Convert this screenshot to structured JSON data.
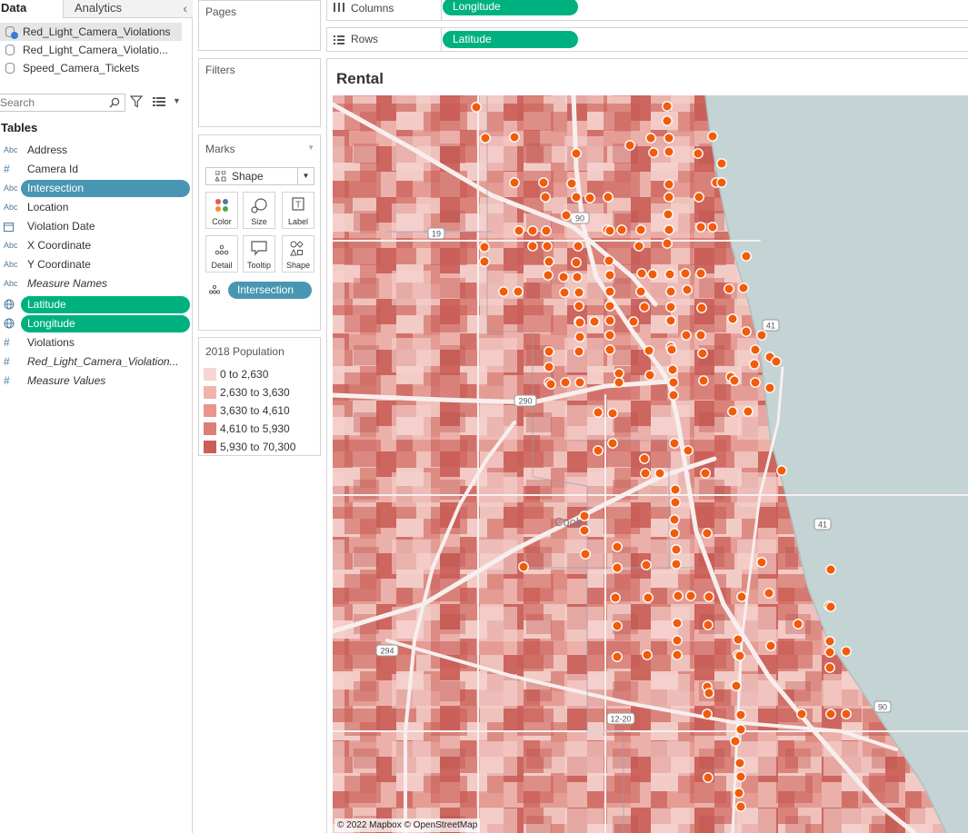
{
  "data_pane": {
    "tabs": [
      "Data",
      "Analytics"
    ],
    "datasources": [
      "Red_Light_Camera_Violations",
      "Red_Light_Camera_Violatio...",
      "Speed_Camera_Tickets"
    ],
    "search_placeholder": "Search",
    "tables_heading": "Tables",
    "fields": [
      {
        "type": "Abc",
        "label": "Address"
      },
      {
        "type": "#",
        "label": "Camera Id"
      },
      {
        "type": "Abc",
        "label": "Intersection"
      },
      {
        "type": "Abc",
        "label": "Location"
      },
      {
        "type": "date",
        "label": "Violation Date"
      },
      {
        "type": "Abc",
        "label": "X Coordinate"
      },
      {
        "type": "Abc",
        "label": "Y Coordinate"
      },
      {
        "type": "Abc",
        "label": "Measure Names"
      },
      {
        "type": "geo",
        "label": "Latitude"
      },
      {
        "type": "geo",
        "label": "Longitude"
      },
      {
        "type": "#",
        "label": "Violations"
      },
      {
        "type": "#",
        "label": "Red_Light_Camera_Violation..."
      },
      {
        "type": "#",
        "label": "Measure Values"
      }
    ]
  },
  "cards": {
    "pages": "Pages",
    "filters": "Filters",
    "marks": {
      "title": "Marks",
      "mark_type": "Shape",
      "buttons": [
        "Color",
        "Size",
        "Label",
        "Detail",
        "Tooltip",
        "Shape"
      ],
      "detail_pill": "Intersection"
    },
    "legend": {
      "title": "2018 Population",
      "items": [
        {
          "label": "0 to 2,630",
          "color": "#f6d5d2"
        },
        {
          "label": "2,630 to 3,630",
          "color": "#f2b3ab"
        },
        {
          "label": "3,630 to 4,610",
          "color": "#ea968c"
        },
        {
          "label": "4,610 to 5,930",
          "color": "#dc7f76"
        },
        {
          "label": "5,930 to 70,300",
          "color": "#cb5e56"
        }
      ]
    }
  },
  "shelves": {
    "columns_label": "Columns",
    "columns_pill": "Longitude",
    "rows_label": "Rows",
    "rows_pill": "Latitude"
  },
  "view": {
    "title": "Rental",
    "attribution": "© 2022 Mapbox © OpenStreetMap",
    "map_labels": {
      "cook": "Cook",
      "highways": [
        "90",
        "19",
        "290",
        "41",
        "41",
        "294",
        "12-20",
        "90"
      ]
    },
    "mark_color": "#f25b0a"
  }
}
